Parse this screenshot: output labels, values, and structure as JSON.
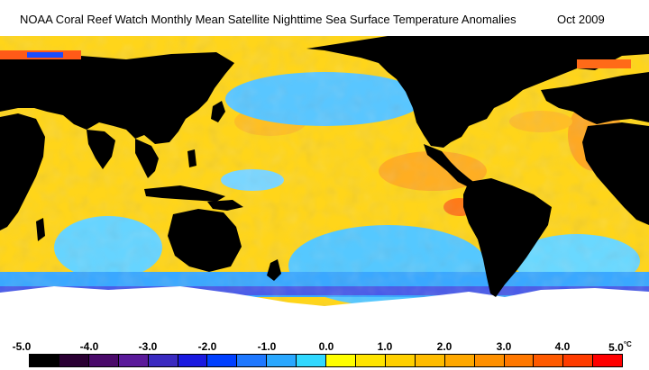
{
  "title": "NOAA Coral Reef Watch Monthly Mean Satellite Nighttime Sea Surface Temperature Anomalies",
  "date": "Oct 2009",
  "scale": {
    "labels": [
      "-5.0",
      "-4.0",
      "-3.0",
      "-2.0",
      "-1.0",
      "0.0",
      "1.0",
      "2.0",
      "3.0",
      "4.0",
      "5.0"
    ],
    "unit": "°C",
    "colors": [
      "#000000",
      "#2a0033",
      "#4a0a6a",
      "#5a1a9a",
      "#3a2ac0",
      "#1a1ae0",
      "#0040ff",
      "#1e78ff",
      "#2aa8ff",
      "#30d8ff",
      "#ffff00",
      "#ffe400",
      "#ffd000",
      "#ffbc00",
      "#ffa800",
      "#ff9000",
      "#ff7800",
      "#ff5a00",
      "#ff3c00",
      "#ff0000"
    ]
  },
  "colors": {
    "land": "#000000",
    "ice": "#ffffff",
    "warm": "#ffd51a",
    "warm_strong": "#ff9a1a",
    "cool": "#4ac8ff",
    "cool_strong": "#3a5cff"
  }
}
